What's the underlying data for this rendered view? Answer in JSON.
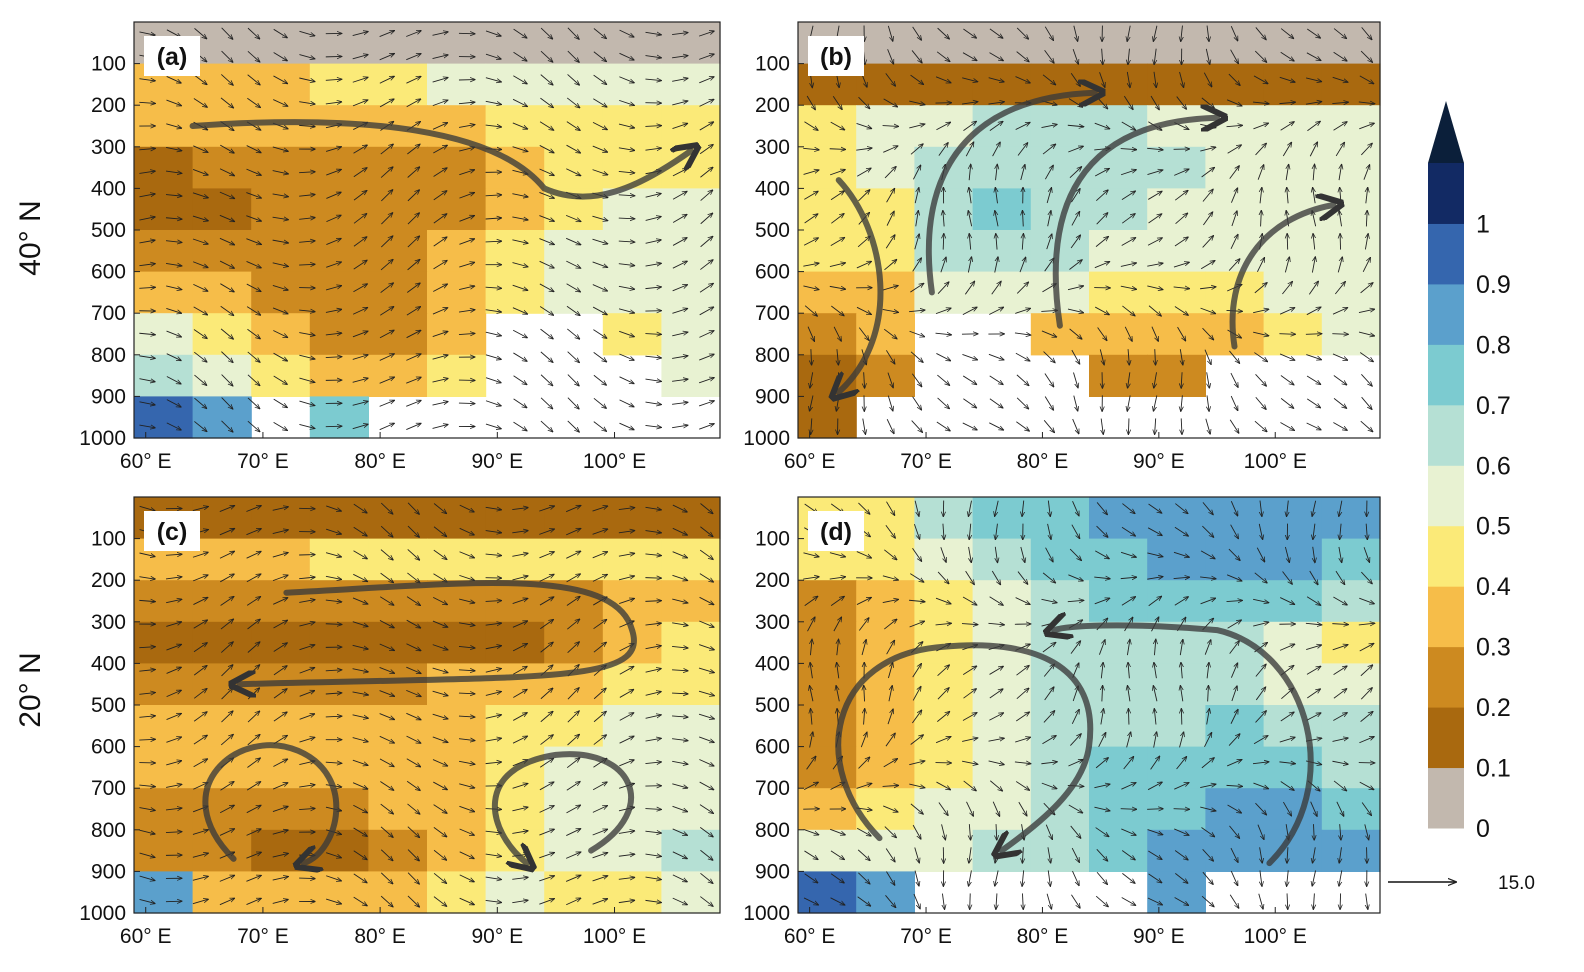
{
  "figure": {
    "row_labels": [
      "40° N",
      "20° N"
    ],
    "colorbar": {
      "levels": [
        0,
        0.1,
        0.2,
        0.3,
        0.4,
        0.5,
        0.6,
        0.7,
        0.8,
        0.9,
        1
      ],
      "labels": [
        "0",
        "0.1",
        "0.2",
        "0.3",
        "0.4",
        "0.5",
        "0.6",
        "0.7",
        "0.8",
        "0.9",
        "1"
      ],
      "colors": [
        "#c2b8ae",
        "#a9690f",
        "#cd8a20",
        "#f6bd49",
        "#fbea78",
        "#e8f2d2",
        "#b5e0d4",
        "#7ccbd0",
        "#5ba0cc",
        "#3566ae",
        "#122a64"
      ],
      "extend_color": "#0b1f3a"
    },
    "reference_vector": {
      "label": "15.0"
    }
  },
  "chart_data": [
    {
      "type": "heatmap",
      "panel_label": "(a)",
      "row": "40° N",
      "x_tick_labels": [
        "60° E",
        "70° E",
        "80° E",
        "90° E",
        "100° E"
      ],
      "y_tick_labels": [
        "100",
        "200",
        "300",
        "400",
        "500",
        "600",
        "700",
        "800",
        "900",
        "1000"
      ],
      "xlim": [
        59,
        109
      ],
      "ylim": [
        1000,
        0
      ],
      "z_range": [
        0,
        1
      ],
      "x_values": [
        60,
        65,
        70,
        75,
        80,
        85,
        90,
        95,
        100,
        105
      ],
      "y_values": [
        50,
        150,
        250,
        350,
        450,
        550,
        650,
        750,
        850,
        950
      ],
      "z": [
        [
          0.05,
          0.05,
          0.05,
          0.05,
          0.05,
          0.05,
          0.05,
          0.05,
          0.05,
          0.05
        ],
        [
          0.3,
          0.3,
          0.35,
          0.4,
          0.45,
          0.5,
          0.5,
          0.55,
          0.55,
          0.5
        ],
        [
          0.3,
          0.3,
          0.3,
          0.3,
          0.35,
          0.35,
          0.4,
          0.45,
          0.45,
          0.45
        ],
        [
          0.15,
          0.2,
          0.25,
          0.25,
          0.25,
          0.25,
          0.3,
          0.4,
          0.45,
          0.45
        ],
        [
          0.15,
          0.15,
          0.25,
          0.25,
          0.25,
          0.25,
          0.35,
          0.45,
          0.5,
          0.55
        ],
        [
          0.25,
          0.25,
          0.25,
          0.25,
          0.25,
          0.3,
          0.45,
          0.5,
          0.55,
          0.55
        ],
        [
          0.35,
          0.3,
          0.25,
          0.25,
          0.25,
          0.3,
          0.4,
          0.5,
          0.55,
          0.55
        ],
        [
          0.5,
          0.45,
          0.35,
          0.25,
          0.25,
          0.3,
          null,
          null,
          0.4,
          0.5
        ],
        [
          0.6,
          0.5,
          0.45,
          0.35,
          0.35,
          0.45,
          null,
          null,
          null,
          0.55
        ],
        [
          0.9,
          0.8,
          null,
          0.75,
          null,
          null,
          null,
          null,
          null,
          null
        ]
      ],
      "flow": "westerly upper flow with a descending then ascending branch toward 100° E"
    },
    {
      "type": "heatmap",
      "panel_label": "(b)",
      "row": "40° N",
      "x_tick_labels": [
        "60° E",
        "70° E",
        "80° E",
        "90° E",
        "100° E"
      ],
      "y_tick_labels": [
        "100",
        "200",
        "300",
        "400",
        "500",
        "600",
        "700",
        "800",
        "900",
        "1000"
      ],
      "xlim": [
        59,
        109
      ],
      "ylim": [
        1000,
        0
      ],
      "z_range": [
        0,
        1
      ],
      "x_values": [
        60,
        65,
        70,
        75,
        80,
        85,
        90,
        95,
        100,
        105
      ],
      "y_values": [
        50,
        150,
        250,
        350,
        450,
        550,
        650,
        750,
        850,
        950
      ],
      "z": [
        [
          0.05,
          0.05,
          0.05,
          0.05,
          0.05,
          0.05,
          0.05,
          0.05,
          0.05,
          0.05
        ],
        [
          0.15,
          0.15,
          0.15,
          0.15,
          0.15,
          0.15,
          0.15,
          0.15,
          0.15,
          0.15
        ],
        [
          0.45,
          0.5,
          0.55,
          0.65,
          0.6,
          0.6,
          0.55,
          0.55,
          0.55,
          0.55
        ],
        [
          0.45,
          0.5,
          0.6,
          0.65,
          0.65,
          0.6,
          0.6,
          0.55,
          0.55,
          0.55
        ],
        [
          0.4,
          0.45,
          0.6,
          0.7,
          0.65,
          0.6,
          0.55,
          0.5,
          0.55,
          0.55
        ],
        [
          0.4,
          0.45,
          0.6,
          0.65,
          0.6,
          0.55,
          0.5,
          0.5,
          0.5,
          0.55
        ],
        [
          0.3,
          0.35,
          0.55,
          0.55,
          0.5,
          0.45,
          0.45,
          0.45,
          0.5,
          0.55
        ],
        [
          0.25,
          0.3,
          null,
          null,
          0.35,
          0.3,
          0.3,
          0.35,
          0.45,
          0.5
        ],
        [
          0.15,
          0.25,
          null,
          null,
          null,
          0.25,
          0.25,
          null,
          null,
          null
        ],
        [
          0.15,
          null,
          null,
          null,
          null,
          null,
          null,
          null,
          null,
          null
        ]
      ],
      "flow": "ascending branches near 72° E, 82° E and 96° E; descent near 62° E"
    },
    {
      "type": "heatmap",
      "panel_label": "(c)",
      "row": "20° N",
      "x_tick_labels": [
        "60° E",
        "70° E",
        "80° E",
        "90° E",
        "100° E"
      ],
      "y_tick_labels": [
        "100",
        "200",
        "300",
        "400",
        "500",
        "600",
        "700",
        "800",
        "900",
        "1000"
      ],
      "xlim": [
        59,
        109
      ],
      "ylim": [
        1000,
        0
      ],
      "z_range": [
        0,
        1
      ],
      "x_values": [
        60,
        65,
        70,
        75,
        80,
        85,
        90,
        95,
        100,
        105
      ],
      "y_values": [
        50,
        150,
        250,
        350,
        450,
        550,
        650,
        750,
        850,
        950
      ],
      "z": [
        [
          0.15,
          0.15,
          0.15,
          0.15,
          0.15,
          0.15,
          0.15,
          0.15,
          0.15,
          0.15
        ],
        [
          0.35,
          0.35,
          0.35,
          0.4,
          0.45,
          0.45,
          0.45,
          0.45,
          0.45,
          0.45
        ],
        [
          0.25,
          0.25,
          0.25,
          0.2,
          0.2,
          0.2,
          0.2,
          0.25,
          0.3,
          0.35
        ],
        [
          0.15,
          0.15,
          0.15,
          0.15,
          0.15,
          0.15,
          0.15,
          0.25,
          0.35,
          0.4
        ],
        [
          0.2,
          0.2,
          0.2,
          0.2,
          0.25,
          0.3,
          0.3,
          0.35,
          0.4,
          0.45
        ],
        [
          0.3,
          0.3,
          0.3,
          0.35,
          0.35,
          0.35,
          0.4,
          0.45,
          0.5,
          0.55
        ],
        [
          0.3,
          0.3,
          0.3,
          0.3,
          0.3,
          0.35,
          0.45,
          0.5,
          0.55,
          0.55
        ],
        [
          0.25,
          0.2,
          0.2,
          0.2,
          0.3,
          0.35,
          0.45,
          0.55,
          0.55,
          0.55
        ],
        [
          0.25,
          0.2,
          0.15,
          0.15,
          0.25,
          0.35,
          0.45,
          0.5,
          0.55,
          0.6
        ],
        [
          0.85,
          0.3,
          0.3,
          0.3,
          0.3,
          0.4,
          0.55,
          0.45,
          0.45,
          0.55
        ]
      ],
      "flow": "upper-level westward return branch with two low-level overturning cells"
    },
    {
      "type": "heatmap",
      "panel_label": "(d)",
      "row": "20° N",
      "x_tick_labels": [
        "60° E",
        "70° E",
        "80° E",
        "90° E",
        "100° E"
      ],
      "y_tick_labels": [
        "100",
        "200",
        "300",
        "400",
        "500",
        "600",
        "700",
        "800",
        "900",
        "1000"
      ],
      "xlim": [
        59,
        109
      ],
      "ylim": [
        1000,
        0
      ],
      "z_range": [
        0,
        1
      ],
      "x_values": [
        60,
        65,
        70,
        75,
        80,
        85,
        90,
        95,
        100,
        105
      ],
      "y_values": [
        50,
        150,
        250,
        350,
        450,
        550,
        650,
        750,
        850,
        950
      ],
      "z": [
        [
          0.4,
          0.45,
          0.6,
          0.7,
          0.75,
          0.8,
          0.8,
          0.8,
          0.8,
          0.85
        ],
        [
          0.4,
          0.45,
          0.55,
          0.6,
          0.7,
          0.75,
          0.8,
          0.8,
          0.85,
          0.75
        ],
        [
          0.25,
          0.35,
          0.45,
          0.55,
          0.65,
          0.7,
          0.7,
          0.7,
          0.7,
          0.6
        ],
        [
          0.2,
          0.35,
          0.45,
          0.55,
          0.6,
          0.65,
          0.65,
          0.6,
          0.55,
          0.45
        ],
        [
          0.2,
          0.3,
          0.45,
          0.55,
          0.6,
          0.65,
          0.65,
          0.6,
          0.55,
          0.5
        ],
        [
          0.2,
          0.35,
          0.45,
          0.55,
          0.65,
          0.65,
          0.65,
          0.7,
          0.65,
          0.6
        ],
        [
          0.25,
          0.35,
          0.45,
          0.55,
          0.65,
          0.7,
          0.75,
          0.75,
          0.7,
          0.65
        ],
        [
          0.3,
          0.45,
          0.5,
          0.55,
          0.65,
          0.7,
          0.75,
          0.8,
          0.8,
          0.75
        ],
        [
          0.5,
          0.55,
          0.55,
          0.6,
          0.65,
          0.7,
          0.8,
          0.85,
          0.85,
          0.85
        ],
        [
          0.95,
          0.85,
          null,
          null,
          null,
          null,
          0.85,
          null,
          null,
          null
        ]
      ],
      "flow": "two deep overturning cells: descent near 66° E and 78° E, ascent near 100° E"
    }
  ]
}
